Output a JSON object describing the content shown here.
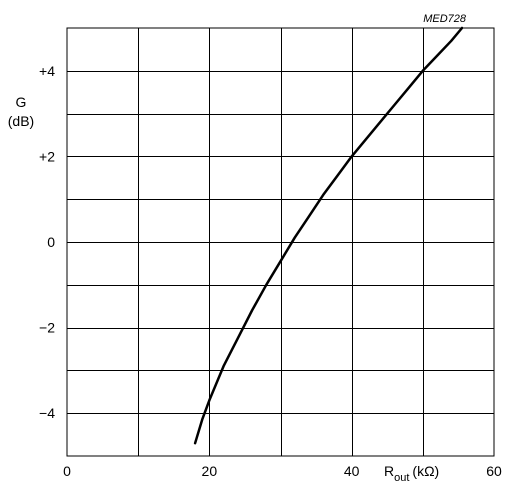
{
  "figure_code": "MED728",
  "chart_data": {
    "type": "line",
    "title": "",
    "ylabel_line1": "G",
    "ylabel_line2": "(dB)",
    "xlabel_main": "R",
    "xlabel_sub": "out",
    "xlabel_unit": "(kΩ)",
    "xlim": [
      0,
      60
    ],
    "ylim": [
      -5,
      5
    ],
    "grid": true,
    "x_major_ticks": [
      0,
      20,
      40,
      60
    ],
    "x_tick_labels": [
      "0",
      "20",
      "40",
      "60"
    ],
    "y_major_ticks": [
      4,
      2,
      0,
      -2,
      -4
    ],
    "y_tick_labels": [
      "+4",
      "+2",
      "0",
      "−2",
      "−4"
    ],
    "x_grid_step": 10,
    "y_grid_step": 1,
    "series": [
      {
        "x": [
          18.0,
          19.0,
          20.0,
          22.0,
          24.0,
          26.0,
          28.0,
          30.0,
          32.0,
          34.0,
          36.0,
          38.0,
          40.0,
          42.0,
          44.0,
          46.0,
          48.0,
          50.0,
          52.0,
          54.0,
          55.5
        ],
        "y": [
          -4.7,
          -4.15,
          -3.7,
          -2.9,
          -2.25,
          -1.6,
          -1.0,
          -0.45,
          0.1,
          0.6,
          1.1,
          1.55,
          2.0,
          2.4,
          2.8,
          3.2,
          3.6,
          4.0,
          4.35,
          4.7,
          5.0
        ]
      }
    ]
  }
}
